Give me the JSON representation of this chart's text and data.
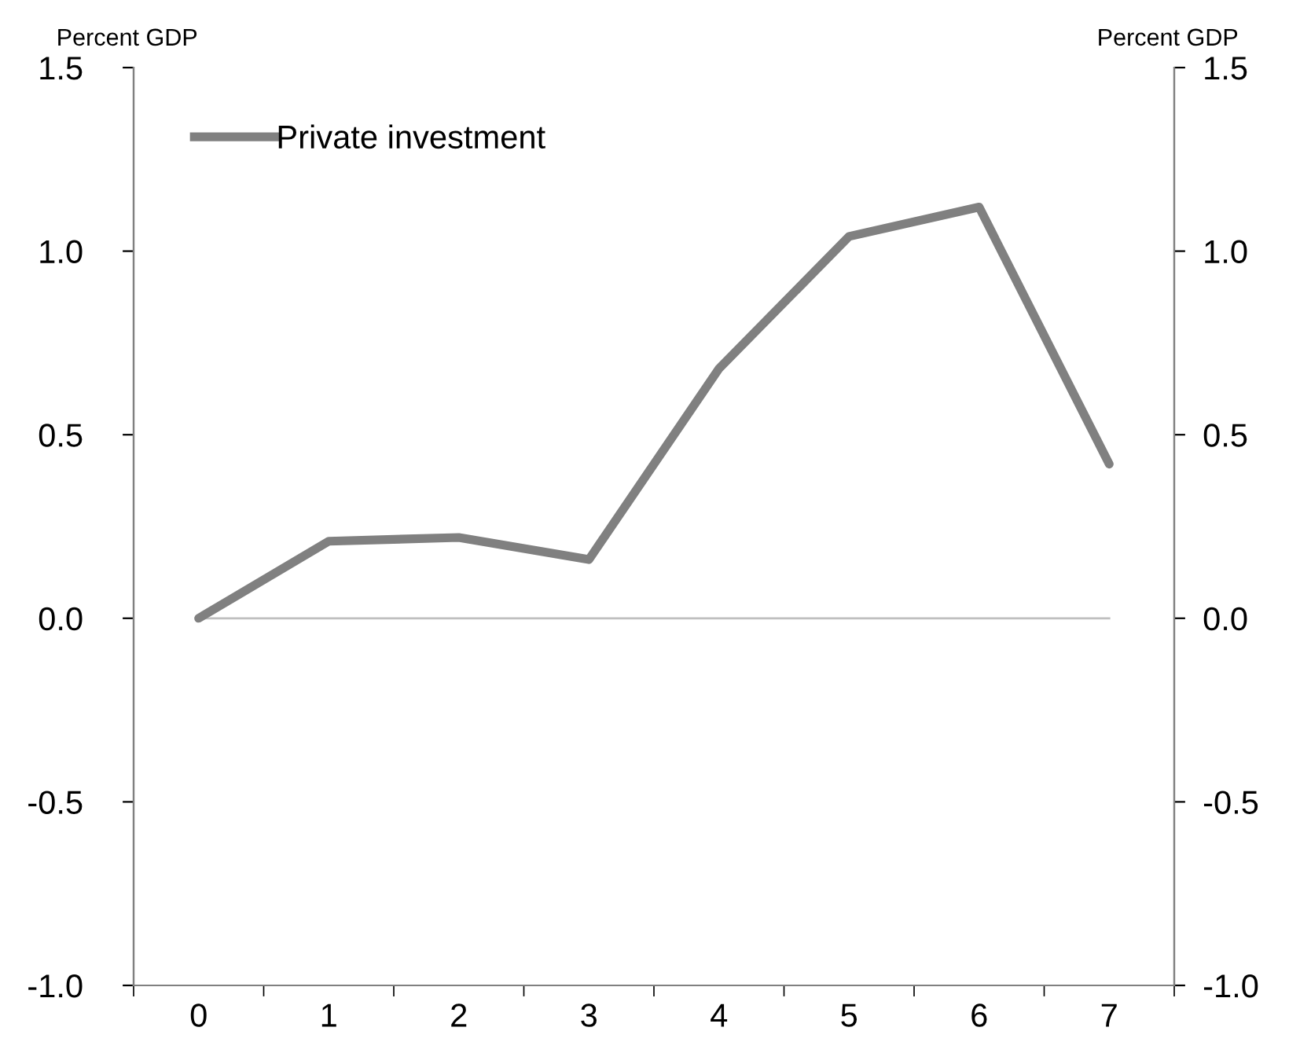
{
  "chart_data": {
    "type": "line",
    "categories": [
      "0",
      "1",
      "2",
      "3",
      "4",
      "5",
      "6",
      "7"
    ],
    "series": [
      {
        "name": "Private investment",
        "color": "#808080",
        "values": [
          0.0,
          0.21,
          0.22,
          0.16,
          0.68,
          1.04,
          1.12,
          0.42
        ]
      }
    ],
    "ylabel": "Percent GDP",
    "y2label": "Percent GDP",
    "ylim": [
      -1.0,
      1.5
    ],
    "yticks": [
      {
        "value": -1.0,
        "label": "-1.0"
      },
      {
        "value": -0.5,
        "label": "-0.5"
      },
      {
        "value": 0.0,
        "label": "0.0"
      },
      {
        "value": 0.5,
        "label": "0.5"
      },
      {
        "value": 1.0,
        "label": "1.0"
      },
      {
        "value": 1.5,
        "label": "1.5"
      }
    ],
    "y2lim": [
      -1.0,
      1.5
    ],
    "y2ticks": [
      {
        "value": -1.0,
        "label": "-1.0"
      },
      {
        "value": -0.5,
        "label": "-0.5"
      },
      {
        "value": 0.0,
        "label": "0.0"
      },
      {
        "value": 0.5,
        "label": "0.5"
      },
      {
        "value": 1.0,
        "label": "1.0"
      },
      {
        "value": 1.5,
        "label": "1.5"
      }
    ],
    "ref_lines": [
      {
        "axis": "y",
        "value": 0.0,
        "color": "#bfbfbf"
      }
    ],
    "legend": "top left",
    "grid": false,
    "marker": "none",
    "line_style": "solid"
  }
}
